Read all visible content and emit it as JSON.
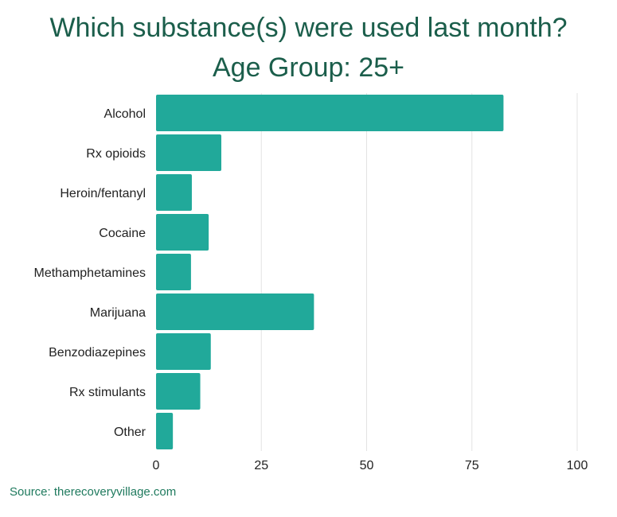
{
  "chart_data": {
    "type": "bar",
    "orientation": "horizontal",
    "title_lines": [
      "Which substance(s) were used last month?",
      "Age Group: 25+"
    ],
    "categories": [
      "Alcohol",
      "Rx opioids",
      "Heroin/fentanyl",
      "Cocaine",
      "Methamphetamines",
      "Marijuana",
      "Benzodiazepines",
      "Rx stimulants",
      "Other"
    ],
    "values": [
      82.5,
      15.5,
      8.5,
      12.5,
      8.3,
      37.5,
      13,
      10.5,
      4
    ],
    "xlim": [
      0,
      100
    ],
    "xticks": [
      0,
      25,
      50,
      75,
      100
    ],
    "grid": true,
    "bar_color": "#21a99a",
    "title_color": "#1b5e4b"
  },
  "footer": {
    "source": "Source: therecoveryvillage.com"
  }
}
